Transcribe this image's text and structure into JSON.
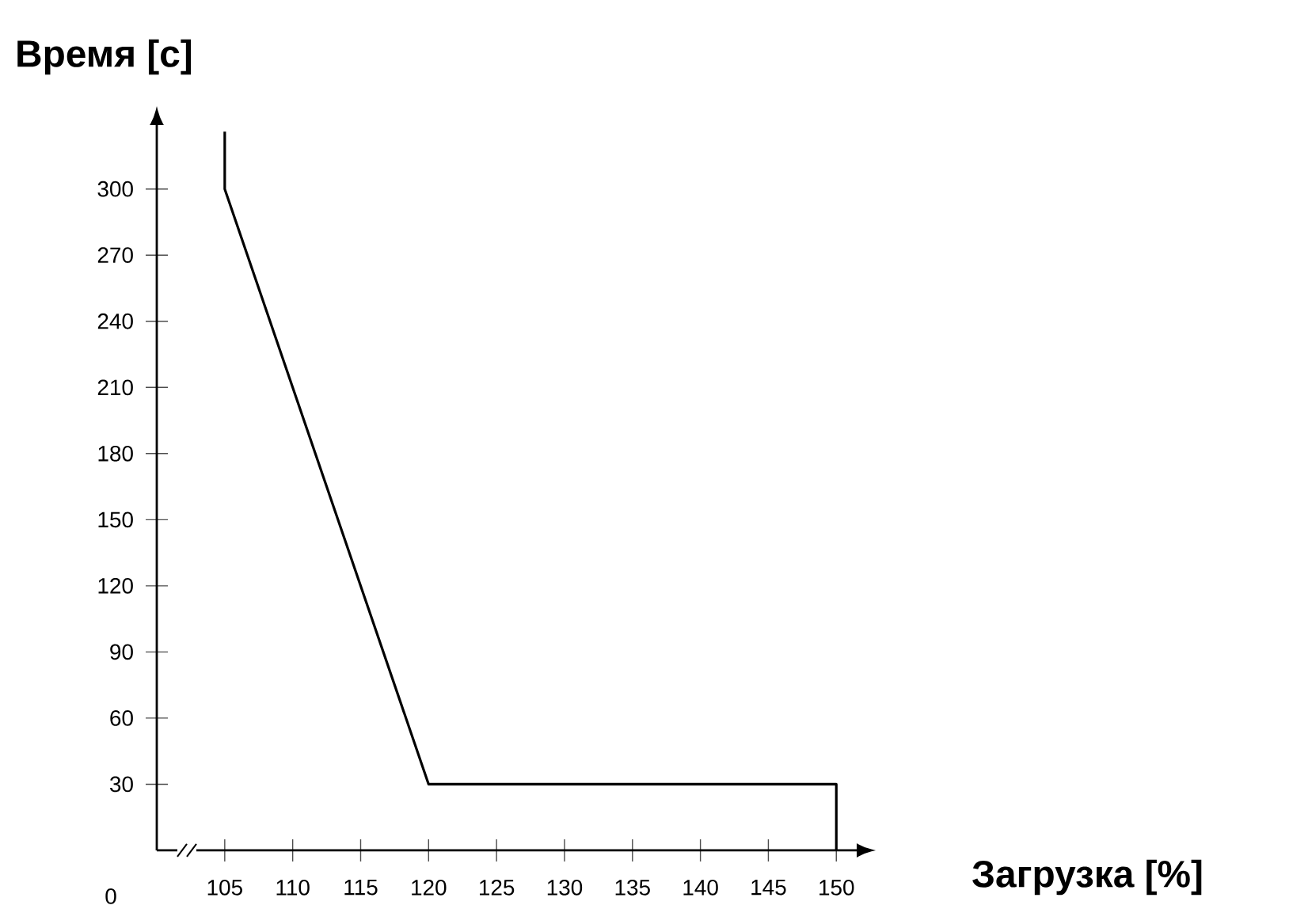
{
  "chart_data": {
    "type": "line",
    "ylabel": "Время [с]",
    "xlabel": "Загрузка [%]",
    "annotations": [
      "0"
    ],
    "xlim": [
      100,
      151.5
    ],
    "ylim": [
      0,
      329
    ],
    "xticks": [
      105,
      110,
      115,
      120,
      125,
      130,
      135,
      140,
      145,
      150
    ],
    "yticks": [
      30,
      60,
      90,
      120,
      150,
      180,
      210,
      240,
      270,
      300
    ],
    "grid": false,
    "marker": "none",
    "line_style": "solid",
    "series": [
      {
        "color": "#000000",
        "x": [
          105,
          105,
          120,
          150,
          150
        ],
        "values": [
          326,
          300,
          30,
          30,
          0
        ]
      }
    ]
  }
}
